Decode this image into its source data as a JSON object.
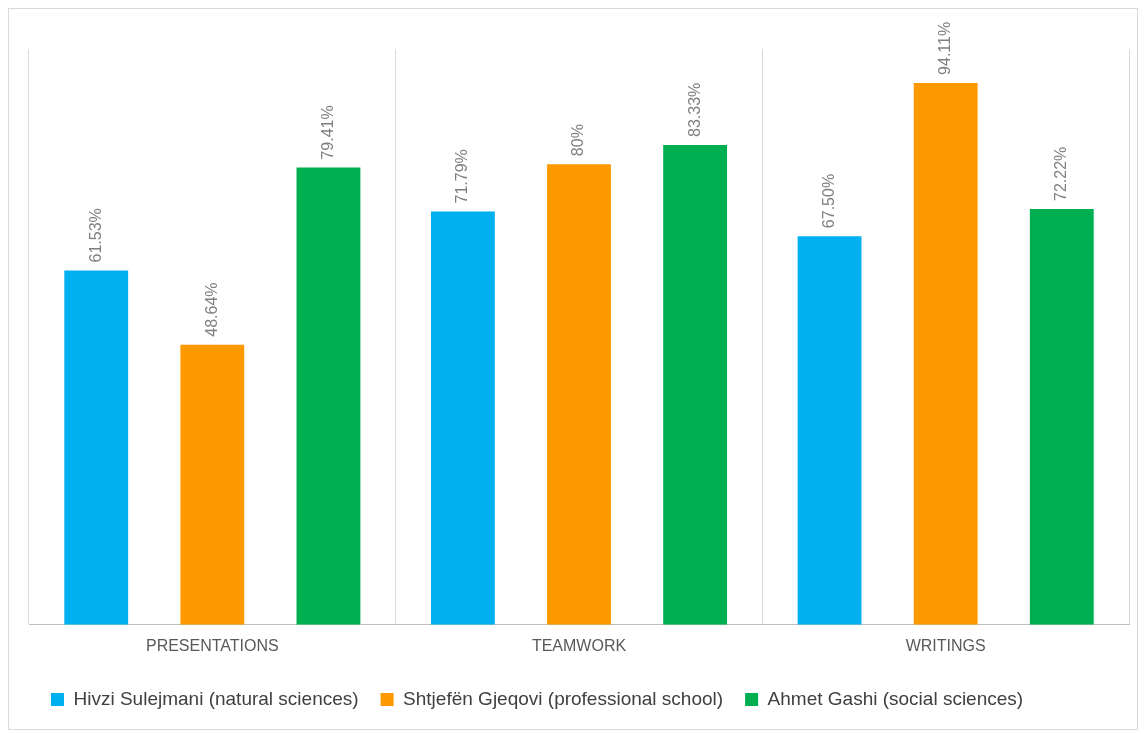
{
  "chart_data": {
    "type": "bar",
    "categories": [
      "PRESENTATIONS",
      "TEAMWORK",
      "WRITINGS"
    ],
    "series": [
      {
        "name": "Hivzi Sulejmani (natural sciences)",
        "color": "#00b0f0",
        "values": [
          61.53,
          71.79,
          67.5
        ],
        "value_labels": [
          "61.53%",
          "71.79%",
          "67.50%"
        ]
      },
      {
        "name": "Shtjefën Gjeqovi (professional school)",
        "color": "#ff9900",
        "values": [
          48.64,
          80,
          94.11
        ],
        "value_labels": [
          "48.64%",
          "80%",
          "94.11%"
        ]
      },
      {
        "name": "Ahmet Gashi (social sciences)",
        "color": "#00b050",
        "values": [
          79.41,
          83.33,
          72.22
        ],
        "value_labels": [
          "79.41%",
          "83.33%",
          "72.22%"
        ]
      }
    ],
    "ylim": [
      0,
      100
    ],
    "tick_labels": "x",
    "grid": "x",
    "legend": "bottom"
  }
}
